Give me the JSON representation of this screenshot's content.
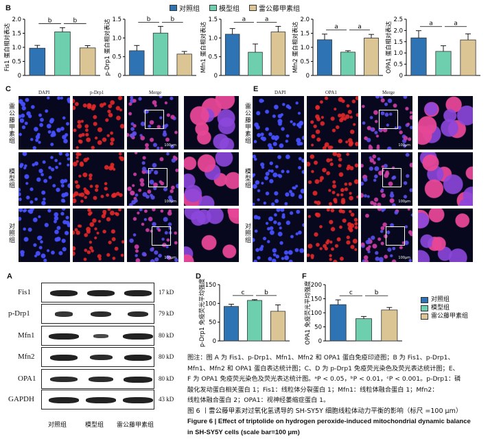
{
  "panels": {
    "A": "A",
    "B": "B",
    "C": "C",
    "D": "D",
    "E": "E",
    "F": "F"
  },
  "colors": {
    "control": "#2e74b5",
    "model": "#6dcfae",
    "treatment": "#dcc594"
  },
  "groups": [
    "对照组",
    "模型组",
    "雷公藤甲素组"
  ],
  "chart_data": [
    {
      "type": "bar",
      "ylabel": "Fis1 蛋白相对表达",
      "categories": [
        "对照组",
        "模型组",
        "雷公藤甲素组"
      ],
      "values": [
        0.97,
        1.55,
        0.98
      ],
      "errors": [
        0.1,
        0.15,
        0.08
      ],
      "ylim": [
        0,
        2.0
      ],
      "yticks": [
        "0",
        "0.5",
        "1.0",
        "1.5",
        "2.0"
      ],
      "sig": [
        "b",
        "b"
      ]
    },
    {
      "type": "bar",
      "ylabel": "p-Drp1 蛋白相对表达",
      "categories": [
        "对照组",
        "模型组",
        "雷公藤甲素组"
      ],
      "values": [
        0.66,
        1.13,
        0.57
      ],
      "errors": [
        0.14,
        0.18,
        0.07
      ],
      "ylim": [
        0,
        1.5
      ],
      "yticks": [
        "0",
        "0.5",
        "1.0",
        "1.5"
      ],
      "sig": [
        "b",
        "b"
      ]
    },
    {
      "type": "bar",
      "ylabel": "Mfn1 蛋白相对表达",
      "categories": [
        "对照组",
        "模型组",
        "雷公藤甲素组"
      ],
      "values": [
        1.1,
        0.62,
        1.16
      ],
      "errors": [
        0.15,
        0.22,
        0.15
      ],
      "ylim": [
        0,
        1.5
      ],
      "yticks": [
        "0",
        "0.5",
        "1.0",
        "1.5"
      ],
      "sig": [
        "a",
        "a"
      ]
    },
    {
      "type": "bar",
      "ylabel": "Mfn2 蛋白相对表达",
      "categories": [
        "对照组",
        "模型组",
        "雷公藤甲素组"
      ],
      "values": [
        1.27,
        0.83,
        1.33
      ],
      "errors": [
        0.2,
        0.05,
        0.13
      ],
      "ylim": [
        0,
        2.0
      ],
      "yticks": [
        "0",
        "0.5",
        "1.0",
        "1.5",
        "2.0"
      ],
      "sig": [
        "a",
        "a"
      ]
    },
    {
      "type": "bar",
      "ylabel": "OPA1 蛋白相对表达",
      "categories": [
        "对照组",
        "模型组",
        "雷公藤甲素组"
      ],
      "values": [
        1.67,
        1.07,
        1.58
      ],
      "errors": [
        0.32,
        0.25,
        0.27
      ],
      "ylim": [
        0,
        2.5
      ],
      "yticks": [
        "0",
        "0.5",
        "1.0",
        "1.5",
        "2.0",
        "2.5"
      ],
      "sig": [
        "a",
        "a"
      ]
    },
    {
      "type": "bar",
      "ylabel": "p-Drp1 免疫荧光平均强度",
      "categories": [
        "对照组",
        "模型组",
        "雷公藤甲素组"
      ],
      "values": [
        92,
        108,
        79
      ],
      "errors": [
        6,
        2,
        17
      ],
      "ylim": [
        0,
        150
      ],
      "yticks": [
        "0",
        "50",
        "100",
        "150"
      ],
      "sig": [
        "c",
        "b"
      ]
    },
    {
      "type": "bar",
      "ylabel": "OPA1 免疫荧光平均强度",
      "categories": [
        "对照组",
        "模型组",
        "雷公藤甲素组"
      ],
      "values": [
        129,
        79,
        110
      ],
      "errors": [
        17,
        8,
        9
      ],
      "ylim": [
        0,
        200
      ],
      "yticks": [
        "0",
        "50",
        "100",
        "150",
        "200"
      ],
      "sig": [
        "c",
        "b"
      ]
    }
  ],
  "micro": {
    "left_cols": [
      "DAPI",
      "p-Drp1",
      "Merge"
    ],
    "right_cols": [
      "DAPI",
      "OPA1",
      "Merge"
    ],
    "rows": [
      "雷公藤甲素组",
      "模型组",
      "对照组"
    ],
    "scale": "100μm"
  },
  "wb": {
    "proteins": [
      {
        "name": "Fis1",
        "kda": "17 kD"
      },
      {
        "name": "p-Drp1",
        "kda": "79 kD"
      },
      {
        "name": "Mfn1",
        "kda": "80 kD"
      },
      {
        "name": "Mfn2",
        "kda": "80 kD"
      },
      {
        "name": "OPA1",
        "kda": "80 kD"
      },
      {
        "name": "GAPDH",
        "kda": "43 kD"
      }
    ]
  },
  "caption": {
    "note1": "图注：图 A 为 Fis1、p-Drp1、Mfn1、Mfn2 和 OPA1 蛋白免疫印迹图；B 为 Fis1、p-Drp1、",
    "note2": "Mfn1、Mfn2 和 OPA1 蛋白表达统计图；C、D 为 p-Drp1 免疫荧光染色及荧光表达统计图；E、",
    "note3": "F 为 OPA1 免疫荧光染色及荧光表达统计图。ᵃP < 0.05，ᵇP < 0.01，ᶜP < 0.001。p-Drp1：磷",
    "note4": "酸化发动蛋白相关蛋白 1；Fis1：线粒体分裂蛋白 1；Mfn1：线粒体融合蛋白 1；Mfn2：",
    "note5": "线粒体融合蛋白 2；OPA1：视神经萎缩症蛋白 1。",
    "title_cn": "图 6 丨雷公藤甲素对过氧化氢诱导的 SH-SY5Y 细胞线粒体动力平衡的影响（标尺 =100 μm）",
    "title_en1": "Figure 6 | Effect of triptolide on hydrogen peroxide-induced mitochondrial dynamic balance",
    "title_en2": "in SH-SY5Y cells (scale bar=100 μm)"
  }
}
